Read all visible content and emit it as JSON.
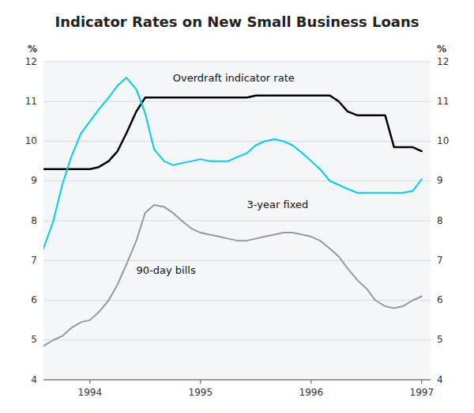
{
  "chart_data": {
    "type": "line",
    "title": "Indicator Rates on New Small Business Loans",
    "ylabel": "%",
    "y2label": "%",
    "x": [
      1993.58,
      1993.67,
      1993.75,
      1993.83,
      1993.92,
      1994.0,
      1994.08,
      1994.17,
      1994.25,
      1994.33,
      1994.42,
      1994.5,
      1994.58,
      1994.67,
      1994.75,
      1994.83,
      1994.92,
      1995.0,
      1995.08,
      1995.17,
      1995.25,
      1995.33,
      1995.42,
      1995.5,
      1995.58,
      1995.67,
      1995.75,
      1995.83,
      1995.92,
      1996.0,
      1996.08,
      1996.17,
      1996.25,
      1996.33,
      1996.42,
      1996.5,
      1996.58,
      1996.67,
      1996.75,
      1996.83,
      1996.92,
      1997.0
    ],
    "series": [
      {
        "color": "#000000",
        "values": [
          9.3,
          9.3,
          9.3,
          9.3,
          9.3,
          9.3,
          9.35,
          9.5,
          9.75,
          10.2,
          10.75,
          11.1,
          11.1,
          11.1,
          11.1,
          11.1,
          11.1,
          11.1,
          11.1,
          11.1,
          11.1,
          11.1,
          11.1,
          11.15,
          11.15,
          11.15,
          11.15,
          11.15,
          11.15,
          11.15,
          11.15,
          11.15,
          11.0,
          10.75,
          10.65,
          10.65,
          10.65,
          10.65,
          9.85,
          9.85,
          9.85,
          9.75
        ]
      },
      {
        "color": "#00ccee",
        "values": [
          7.3,
          8.0,
          8.9,
          9.6,
          10.2,
          10.5,
          10.8,
          11.1,
          11.4,
          11.6,
          11.3,
          10.7,
          9.8,
          9.5,
          9.4,
          9.45,
          9.5,
          9.55,
          9.5,
          9.5,
          9.5,
          9.6,
          9.7,
          9.9,
          10.0,
          10.05,
          10.0,
          9.9,
          9.7,
          9.5,
          9.3,
          9.0,
          8.9,
          8.8,
          8.7,
          8.7,
          8.7,
          8.7,
          8.7,
          8.7,
          8.75,
          9.05
        ]
      },
      {
        "color": "#999999",
        "values": [
          4.85,
          5.0,
          5.1,
          5.3,
          5.45,
          5.5,
          5.7,
          6.0,
          6.4,
          6.9,
          7.5,
          8.2,
          8.4,
          8.35,
          8.2,
          8.0,
          7.8,
          7.7,
          7.65,
          7.6,
          7.55,
          7.5,
          7.5,
          7.55,
          7.6,
          7.65,
          7.7,
          7.7,
          7.65,
          7.6,
          7.5,
          7.3,
          7.1,
          6.8,
          6.5,
          6.3,
          6.0,
          5.85,
          5.8,
          5.85,
          6.0,
          6.1
        ]
      }
    ],
    "xlim": [
      1993.58,
      1997.08
    ],
    "xticks": [
      1994,
      1995,
      1996,
      1997
    ],
    "ylim": [
      4,
      12
    ],
    "yticks": [
      4,
      5,
      6,
      7,
      8,
      9,
      10,
      11,
      12
    ],
    "y2lim": [
      4,
      12
    ],
    "y2ticks": [
      4,
      5,
      6,
      7,
      8,
      9,
      10,
      11,
      12
    ],
    "grid": true,
    "annotations": [
      {
        "text": "Overdraft indicator rate",
        "x": 1994.75,
        "y": 11.45
      },
      {
        "text": "3-year fixed",
        "x": 1995.42,
        "y": 8.25
      },
      {
        "text": "90-day bills",
        "x": 1994.42,
        "y": 6.6
      }
    ]
  }
}
